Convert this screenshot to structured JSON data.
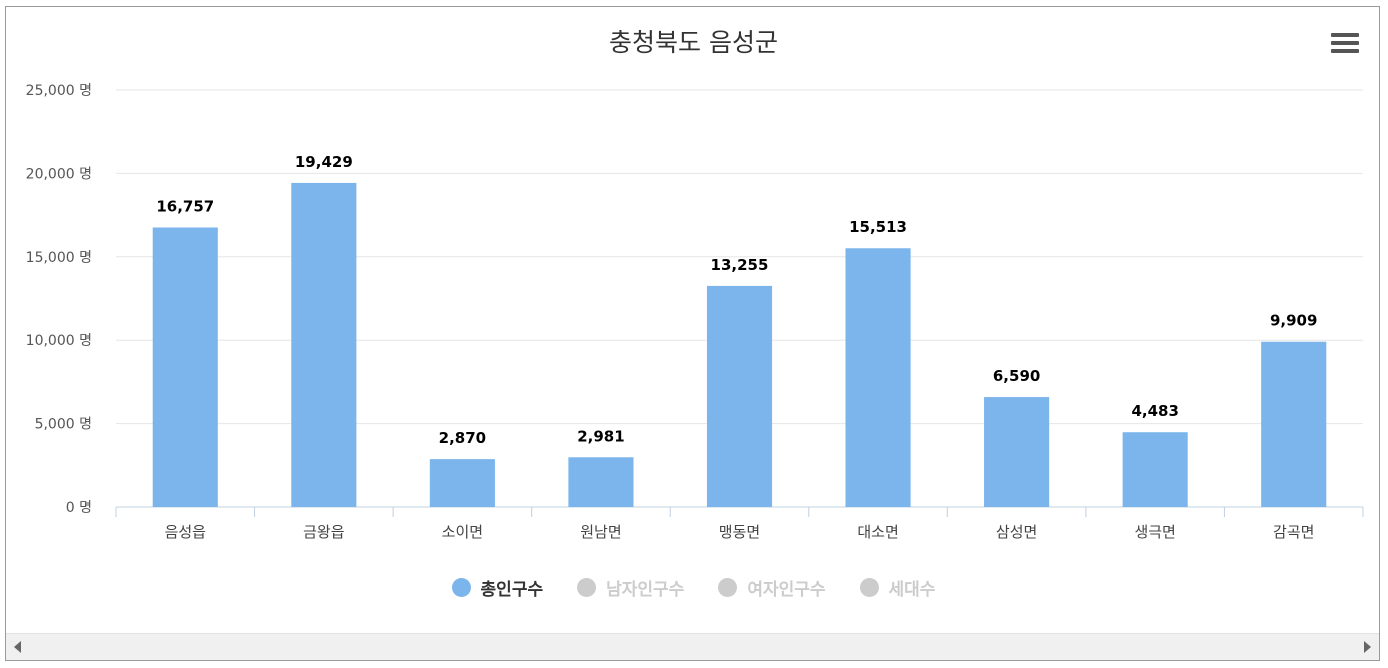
{
  "chart_data": {
    "type": "bar",
    "title": "충청북도 음성군",
    "categories": [
      "음성읍",
      "금왕읍",
      "소이면",
      "원남면",
      "맹동면",
      "대소면",
      "삼성면",
      "생극면",
      "감곡면"
    ],
    "series": [
      {
        "name": "총인구수",
        "values": [
          16757,
          19429,
          2870,
          2981,
          13255,
          15513,
          6590,
          4483,
          9909
        ],
        "color": "#7cb5ec",
        "visible": true
      }
    ],
    "value_labels": [
      "16,757",
      "19,429",
      "2,870",
      "2,981",
      "13,255",
      "15,513",
      "6,590",
      "4,483",
      "9,909"
    ],
    "ylim": [
      0,
      25000
    ],
    "yticks": [
      0,
      5000,
      10000,
      15000,
      20000,
      25000
    ],
    "ytick_labels": [
      "0 명",
      "5,000 명",
      "10,000 명",
      "15,000 명",
      "20,000 명",
      "25,000 명"
    ],
    "grid": true,
    "legend_position": "bottom-center"
  },
  "legend": [
    {
      "label": "총인구수",
      "active": true,
      "color": "#7cb5ec"
    },
    {
      "label": "남자인구수",
      "active": false,
      "color": "#cccccc"
    },
    {
      "label": "여자인구수",
      "active": false,
      "color": "#cccccc"
    },
    {
      "label": "세대수",
      "active": false,
      "color": "#cccccc"
    }
  ],
  "menu": {
    "icon": "hamburger-menu-icon"
  }
}
